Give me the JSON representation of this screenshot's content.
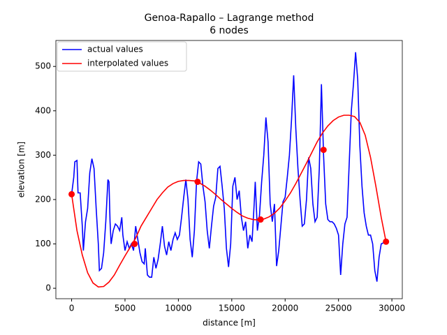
{
  "chart_data": {
    "type": "line",
    "title": "Genoa-Rapallo – Lagrange method",
    "subtitle": "6 nodes",
    "x_label": "distance [m]",
    "y_label": "elevation [m]",
    "xlim": [
      -1475,
      30975
    ],
    "ylim": [
      -23.5,
      558.5
    ],
    "xticks": [
      0,
      5000,
      10000,
      15000,
      20000,
      25000,
      30000
    ],
    "yticks": [
      0,
      100,
      200,
      300,
      400,
      500
    ],
    "legend": "upper left",
    "grid": false,
    "series": [
      {
        "name": "actual values",
        "color": "#0000ff",
        "x": [
          0,
          200,
          300,
          500,
          600,
          800,
          1000,
          1100,
          1300,
          1500,
          1700,
          1900,
          2100,
          2300,
          2500,
          2600,
          2800,
          3000,
          3200,
          3400,
          3500,
          3600,
          3700,
          3900,
          4100,
          4300,
          4500,
          4700,
          4800,
          5000,
          5200,
          5400,
          5600,
          5800,
          6000,
          6200,
          6400,
          6600,
          6800,
          6900,
          7100,
          7300,
          7500,
          7700,
          7900,
          8100,
          8300,
          8500,
          8700,
          8900,
          9100,
          9300,
          9500,
          9700,
          9900,
          10100,
          10300,
          10500,
          10700,
          10900,
          11100,
          11300,
          11500,
          11700,
          11900,
          12100,
          12300,
          12500,
          12700,
          12900,
          13100,
          13300,
          13500,
          13700,
          13900,
          14100,
          14300,
          14500,
          14700,
          14900,
          15100,
          15300,
          15500,
          15700,
          15900,
          16100,
          16300,
          16500,
          16700,
          16900,
          17100,
          17200,
          17400,
          17600,
          17800,
          18000,
          18200,
          18400,
          18600,
          18800,
          19000,
          19200,
          19400,
          19600,
          19800,
          20000,
          20200,
          20400,
          20600,
          20800,
          21000,
          21200,
          21400,
          21600,
          21800,
          22000,
          22200,
          22400,
          22600,
          22800,
          23000,
          23200,
          23400,
          23600,
          23800,
          24000,
          24200,
          24400,
          24600,
          24800,
          25000,
          25200,
          25400,
          25600,
          25800,
          26000,
          26200,
          26400,
          26600,
          26800,
          27000,
          27200,
          27400,
          27600,
          27800,
          28000,
          28200,
          28400,
          28600,
          28800,
          29000,
          29400
        ],
        "values": [
          212,
          250,
          285,
          288,
          215,
          215,
          140,
          85,
          150,
          180,
          260,
          292,
          270,
          180,
          100,
          40,
          45,
          80,
          150,
          245,
          240,
          150,
          100,
          130,
          145,
          140,
          130,
          160,
          120,
          85,
          105,
          90,
          100,
          85,
          140,
          110,
          80,
          60,
          55,
          90,
          30,
          25,
          25,
          70,
          45,
          65,
          100,
          140,
          95,
          75,
          105,
          85,
          110,
          125,
          110,
          120,
          160,
          205,
          245,
          200,
          110,
          70,
          130,
          240,
          285,
          280,
          230,
          195,
          130,
          90,
          140,
          185,
          205,
          270,
          275,
          230,
          180,
          90,
          48,
          100,
          230,
          250,
          200,
          220,
          160,
          130,
          150,
          90,
          120,
          105,
          190,
          240,
          130,
          165,
          240,
          300,
          385,
          330,
          190,
          150,
          190,
          50,
          85,
          140,
          195,
          205,
          250,
          300,
          380,
          480,
          360,
          270,
          200,
          140,
          145,
          200,
          295,
          270,
          190,
          150,
          160,
          270,
          460,
          300,
          190,
          155,
          150,
          150,
          145,
          135,
          120,
          30,
          100,
          145,
          160,
          280,
          400,
          460,
          532,
          470,
          320,
          230,
          170,
          140,
          120,
          120,
          100,
          40,
          15,
          70,
          100,
          105
        ]
      },
      {
        "name": "interpolated values",
        "color": "#ff0000",
        "x": [
          0,
          500,
          1000,
          1500,
          2000,
          2500,
          3000,
          3500,
          4000,
          4500,
          5000,
          5500,
          6000,
          6500,
          7000,
          7500,
          8000,
          8500,
          9000,
          9500,
          10000,
          10500,
          11000,
          11500,
          12000,
          12500,
          13000,
          13500,
          14000,
          14500,
          15000,
          15500,
          16000,
          16500,
          17000,
          17500,
          18000,
          18500,
          19000,
          19500,
          20000,
          20500,
          21000,
          21500,
          22000,
          22500,
          23000,
          23500,
          24000,
          24500,
          25000,
          25500,
          26000,
          26500,
          27000,
          27500,
          28000,
          28500,
          29000,
          29450
        ],
        "values": [
          212,
          130,
          75,
          35,
          12,
          3,
          4,
          14,
          30,
          52,
          73,
          93,
          113,
          140,
          160,
          180,
          200,
          215,
          228,
          236,
          241,
          243,
          243,
          242,
          237,
          230,
          221,
          211,
          200,
          190,
          180,
          171,
          163,
          158,
          155,
          154,
          156,
          161,
          169,
          181,
          197,
          215,
          236,
          259,
          282,
          306,
          330,
          350,
          366,
          378,
          386,
          390,
          390,
          387,
          374,
          345,
          295,
          230,
          160,
          105
        ]
      }
    ],
    "nodes": {
      "color": "#ff0000",
      "x": [
        0,
        5900,
        11800,
        17700,
        23600,
        29450
      ],
      "values": [
        212,
        100,
        240,
        155,
        312,
        105
      ]
    }
  }
}
